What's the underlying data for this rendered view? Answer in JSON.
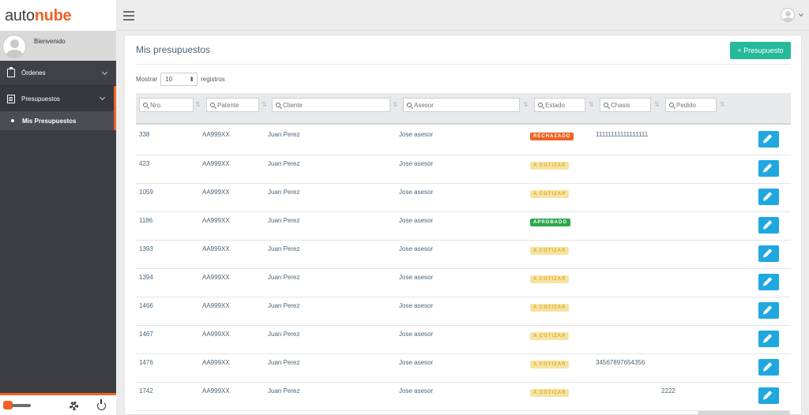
{
  "brand": {
    "part1": "auto",
    "part2": "nube"
  },
  "user": {
    "welcome": "Bienvenido"
  },
  "nav": {
    "ordenes": "Órdenes",
    "presupuestos": "Presupuestos",
    "mis_presupuestos": "Mis Presupuestos"
  },
  "page": {
    "title": "Mis presupuestos",
    "new_button": "+ Presupuesto"
  },
  "length": {
    "prefix": "Mostrar",
    "value": "10",
    "suffix": "registros"
  },
  "filters": {
    "nro": "Nro.",
    "patente": "Patente",
    "cliente": "Cliente",
    "asesor": "Asesor",
    "estado": "Estado",
    "chasis": "Chasis",
    "pedido": "Pedido"
  },
  "rows": [
    {
      "nro": "338",
      "patente": "AA999XX",
      "cliente": "Juan Perez",
      "asesor": "Jose asesor",
      "estado": "RECHAZADO",
      "chasis": "11111111111111111",
      "pedido": ""
    },
    {
      "nro": "423",
      "patente": "AA999XX",
      "cliente": "Juan Perez",
      "asesor": "Jose asesor",
      "estado": "A COTIZAR",
      "chasis": "",
      "pedido": ""
    },
    {
      "nro": "1059",
      "patente": "AA999XX",
      "cliente": "Juan Perez",
      "asesor": "Jose asesor",
      "estado": "A COTIZAR",
      "chasis": "",
      "pedido": ""
    },
    {
      "nro": "1186",
      "patente": "AA999XX",
      "cliente": "Juan Perez",
      "asesor": "Jose asesor",
      "estado": "APROBADO",
      "chasis": "",
      "pedido": ""
    },
    {
      "nro": "1393",
      "patente": "AA999XX",
      "cliente": "Juan Perez",
      "asesor": "Jose asesor",
      "estado": "A COTIZAR",
      "chasis": "",
      "pedido": ""
    },
    {
      "nro": "1394",
      "patente": "AA999XX",
      "cliente": "Juan Perez",
      "asesor": "Jose asesor",
      "estado": "A COTIZAR",
      "chasis": "",
      "pedido": ""
    },
    {
      "nro": "1466",
      "patente": "AA999XX",
      "cliente": "Juan Perez",
      "asesor": "Jose asesor",
      "estado": "A COTIZAR",
      "chasis": "",
      "pedido": ""
    },
    {
      "nro": "1467",
      "patente": "AA999XX",
      "cliente": "Juan Perez",
      "asesor": "Jose asesor",
      "estado": "A COTIZAR",
      "chasis": "",
      "pedido": ""
    },
    {
      "nro": "1476",
      "patente": "AA999XX",
      "cliente": "Juan Perez",
      "asesor": "Jose asesor",
      "estado": "A COTIZAR",
      "chasis": "34567897654356",
      "pedido": ""
    },
    {
      "nro": "1742",
      "patente": "AA999XX",
      "cliente": "Juan Perez",
      "asesor": "Jose asesor",
      "estado": "A COTIZAR",
      "chasis": "",
      "pedido": "2222"
    }
  ],
  "colors": {
    "accent": "#f06224",
    "new_button": "#26b99a",
    "edit_button": "#1fa8e0",
    "rechazado": "#f06224",
    "aprobado": "#2aa84a",
    "cotizar": "#f6e3a2"
  }
}
